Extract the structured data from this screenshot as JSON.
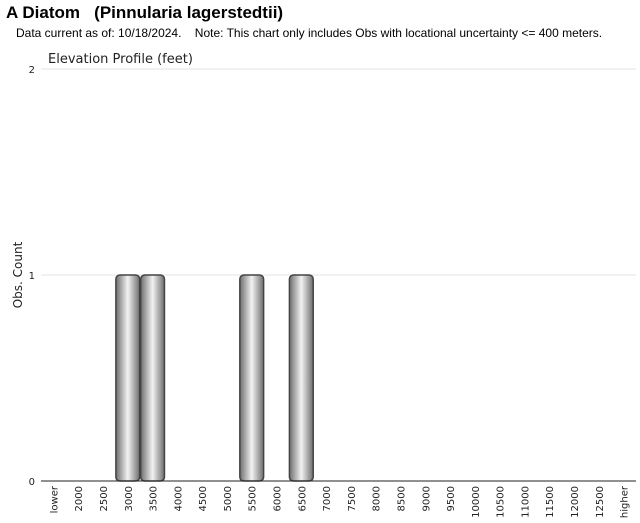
{
  "header": {
    "title": "A Diatom   (Pinnularia lagerstedtii)",
    "subtitle": "Data current as of: 10/18/2024.    Note: This chart only includes Obs with locational uncertainty <= 400 meters."
  },
  "chart_data": {
    "type": "bar",
    "title": "Elevation Profile (feet)",
    "xlabel": "",
    "ylabel": "Obs. Count",
    "ylim": [
      0,
      2
    ],
    "yticks": [
      "0",
      "1",
      "2"
    ],
    "grid": true,
    "categories": [
      "lower",
      "2000",
      "2500",
      "3000",
      "3500",
      "4000",
      "4500",
      "5000",
      "5500",
      "6000",
      "6500",
      "7000",
      "7500",
      "8000",
      "8500",
      "9000",
      "9500",
      "10000",
      "10500",
      "11000",
      "11500",
      "12000",
      "12500",
      "higher"
    ],
    "values": [
      0,
      0,
      0,
      1,
      1,
      0,
      0,
      0,
      1,
      0,
      1,
      0,
      0,
      0,
      0,
      0,
      0,
      0,
      0,
      0,
      0,
      0,
      0,
      0
    ]
  }
}
